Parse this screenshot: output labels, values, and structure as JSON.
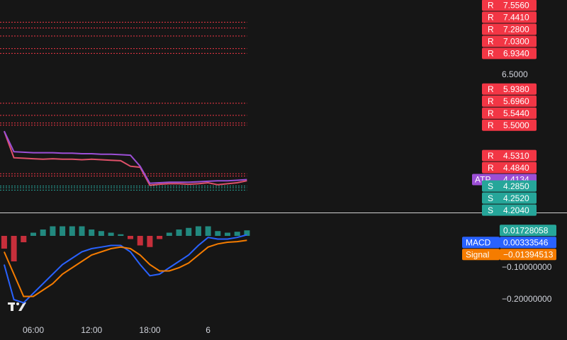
{
  "chart_data": [
    {
      "type": "line",
      "x": [
        3,
        4,
        5,
        6,
        7,
        8,
        9,
        10,
        11,
        12,
        13,
        14,
        15,
        16,
        17,
        18,
        19,
        20,
        21,
        22,
        23,
        24,
        25,
        26,
        27,
        28
      ],
      "xlim": [
        2.57,
        52.2
      ],
      "ylim": [
        3.756,
        8.0
      ],
      "yticks": [
        {
          "value": 6.5,
          "label": "6.5000"
        }
      ],
      "series": [
        {
          "color": "#e0516a",
          "values": [
            5.38,
            4.85,
            4.84,
            4.83,
            4.82,
            4.83,
            4.82,
            4.82,
            4.81,
            4.82,
            4.81,
            4.8,
            4.79,
            4.68,
            4.66,
            4.3,
            4.32,
            4.33,
            4.33,
            4.32,
            4.33,
            4.35,
            4.31,
            4.33,
            4.35,
            4.39
          ]
        },
        {
          "name": "ATP",
          "color": "#9c4fd6",
          "last_label": "4.4134",
          "values": [
            5.38,
            4.97,
            4.96,
            4.95,
            4.95,
            4.95,
            4.94,
            4.94,
            4.93,
            4.93,
            4.92,
            4.92,
            4.91,
            4.9,
            4.68,
            4.34,
            4.35,
            4.36,
            4.36,
            4.36,
            4.37,
            4.38,
            4.39,
            4.39,
            4.4,
            4.4134
          ]
        }
      ],
      "resistance": {
        "marker": "R",
        "color": "#f23645",
        "values": [
          7.556,
          7.441,
          7.28,
          7.03,
          6.934,
          5.938,
          5.696,
          5.544,
          5.5,
          4.531,
          4.484
        ],
        "value_labels": [
          "7.5560",
          "7.4410",
          "7.2800",
          "7.0300",
          "6.9340",
          "5.9380",
          "5.6960",
          "5.5440",
          "5.5000",
          "4.5310",
          "4.4840"
        ]
      },
      "support": {
        "marker": "S",
        "color": "#26a69a",
        "values": [
          4.285,
          4.252,
          4.204
        ],
        "value_labels": [
          "4.2850",
          "4.2520",
          "4.2040"
        ]
      }
    },
    {
      "type": "macd",
      "x": [
        3,
        4,
        5,
        6,
        7,
        8,
        9,
        10,
        11,
        12,
        13,
        14,
        15,
        16,
        17,
        18,
        19,
        20,
        21,
        22,
        23,
        24,
        25,
        26,
        27,
        28
      ],
      "xlim": [
        2.57,
        52.2
      ],
      "ylim": [
        -0.271,
        0.0733
      ],
      "xticks": [
        {
          "value": 6,
          "label": "06:00"
        },
        {
          "value": 12,
          "label": "12:00"
        },
        {
          "value": 18,
          "label": "18:00"
        },
        {
          "value": 24,
          "label": "6"
        }
      ],
      "yticks": [
        {
          "value": -0.1,
          "label": "−0.10000000"
        },
        {
          "value": -0.2,
          "label": "−0.20000000"
        }
      ],
      "histogram": {
        "color_up": "#26a69a",
        "color_down": "#f23645",
        "last_label": "0.01728058",
        "values": [
          -0.04,
          -0.08,
          -0.02,
          0.01,
          0.02,
          0.03,
          0.03,
          0.03,
          0.03,
          0.02,
          0.015,
          0.01,
          0.005,
          -0.01,
          -0.03,
          -0.035,
          -0.01,
          0.01,
          0.02,
          0.025,
          0.03,
          0.03,
          0.015,
          0.01,
          0.013,
          0.01728058
        ]
      },
      "series": [
        {
          "name": "MACD",
          "color": "#2962ff",
          "last_label": "0.00333546",
          "values": [
            -0.09,
            -0.2,
            -0.21,
            -0.18,
            -0.15,
            -0.12,
            -0.09,
            -0.07,
            -0.05,
            -0.04,
            -0.035,
            -0.03,
            -0.03,
            -0.05,
            -0.09,
            -0.125,
            -0.12,
            -0.1,
            -0.08,
            -0.06,
            -0.03,
            -0.005,
            -0.01,
            -0.01,
            -0.005,
            0.00333546
          ]
        },
        {
          "name": "Signal",
          "color": "#f57c00",
          "last_label": "−0.01394513",
          "values": [
            -0.05,
            -0.12,
            -0.19,
            -0.19,
            -0.17,
            -0.15,
            -0.12,
            -0.1,
            -0.08,
            -0.06,
            -0.05,
            -0.04,
            -0.035,
            -0.04,
            -0.06,
            -0.09,
            -0.11,
            -0.11,
            -0.1,
            -0.085,
            -0.06,
            -0.035,
            -0.025,
            -0.02,
            -0.018,
            -0.01394513
          ]
        }
      ]
    }
  ]
}
